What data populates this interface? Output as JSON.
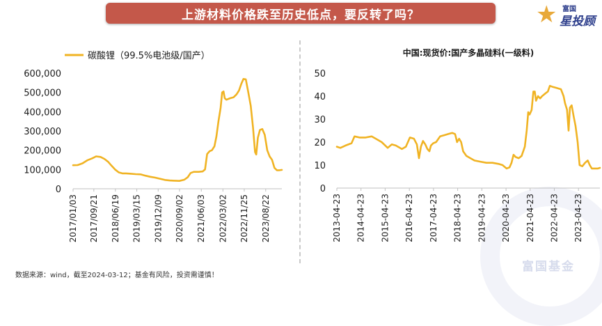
{
  "header": {
    "title": "上游材料价格跌至历史低点，要反转了吗？"
  },
  "logo": {
    "brand_small": "富国",
    "brand_big": "星投顾",
    "icon": "star-icon"
  },
  "footer": {
    "source": "数据来源：wind，截至2024-03-12；基金有风险，投资需谨慎！"
  },
  "watermark": {
    "text": "富国基金"
  },
  "colors": {
    "line": "#f0b323",
    "banner": "#c4584a",
    "axis": "#bfbfbf",
    "text": "#1a1a1a"
  },
  "chart_data": [
    {
      "type": "line",
      "title": "",
      "legend": "碳酸锂（99.5%电池级/国产）",
      "legend_position": "top-left",
      "xlabel": "",
      "ylabel": "",
      "ylim": [
        0,
        600000
      ],
      "yticks": [
        "600,000",
        "500,000",
        "400,000",
        "300,000",
        "200,000",
        "100,000",
        "0"
      ],
      "xticks": [
        "2017/01/03",
        "2017/09/21",
        "2018/06/19",
        "2019/03/15",
        "2019/12/09",
        "2020/09/02",
        "2021/06/03",
        "2022/03/02",
        "2022/11/25",
        "2023/08/22"
      ],
      "x_range": [
        "2017-01-03",
        "2024-03-12"
      ],
      "grid": false,
      "series": [
        {
          "name": "碳酸锂（99.5%电池级/国产）",
          "points": [
            [
              "2017-01-03",
              122000
            ],
            [
              "2017-03-01",
              123000
            ],
            [
              "2017-05-01",
              132000
            ],
            [
              "2017-07-01",
              148000
            ],
            [
              "2017-09-01",
              158000
            ],
            [
              "2017-10-20",
              168000
            ],
            [
              "2017-12-15",
              165000
            ],
            [
              "2018-02-01",
              155000
            ],
            [
              "2018-03-20",
              140000
            ],
            [
              "2018-05-01",
              120000
            ],
            [
              "2018-06-15",
              100000
            ],
            [
              "2018-08-01",
              85000
            ],
            [
              "2018-09-15",
              80000
            ],
            [
              "2018-11-01",
              80000
            ],
            [
              "2019-01-01",
              78000
            ],
            [
              "2019-03-01",
              76000
            ],
            [
              "2019-05-01",
              75000
            ],
            [
              "2019-07-01",
              68000
            ],
            [
              "2019-09-01",
              62000
            ],
            [
              "2019-11-01",
              58000
            ],
            [
              "2020-01-01",
              52000
            ],
            [
              "2020-03-01",
              46000
            ],
            [
              "2020-05-01",
              43000
            ],
            [
              "2020-07-01",
              42000
            ],
            [
              "2020-09-01",
              41000
            ],
            [
              "2020-11-01",
              47000
            ],
            [
              "2020-12-15",
              60000
            ],
            [
              "2021-01-20",
              82000
            ],
            [
              "2021-03-01",
              88000
            ],
            [
              "2021-05-01",
              88000
            ],
            [
              "2021-06-20",
              90000
            ],
            [
              "2021-07-20",
              100000
            ],
            [
              "2021-08-15",
              180000
            ],
            [
              "2021-09-15",
              195000
            ],
            [
              "2021-10-15",
              200000
            ],
            [
              "2021-11-15",
              220000
            ],
            [
              "2021-12-10",
              270000
            ],
            [
              "2022-01-05",
              350000
            ],
            [
              "2022-02-01",
              420000
            ],
            [
              "2022-02-20",
              500000
            ],
            [
              "2022-03-10",
              505000
            ],
            [
              "2022-03-25",
              470000
            ],
            [
              "2022-04-15",
              462000
            ],
            [
              "2022-06-01",
              470000
            ],
            [
              "2022-07-15",
              475000
            ],
            [
              "2022-08-20",
              490000
            ],
            [
              "2022-09-20",
              510000
            ],
            [
              "2022-10-20",
              545000
            ],
            [
              "2022-11-15",
              570000
            ],
            [
              "2022-12-15",
              568000
            ],
            [
              "2023-01-15",
              500000
            ],
            [
              "2023-02-15",
              430000
            ],
            [
              "2023-03-15",
              320000
            ],
            [
              "2023-04-10",
              190000
            ],
            [
              "2023-04-25",
              178000
            ],
            [
              "2023-05-15",
              265000
            ],
            [
              "2023-06-10",
              305000
            ],
            [
              "2023-07-10",
              310000
            ],
            [
              "2023-08-10",
              280000
            ],
            [
              "2023-09-10",
              200000
            ],
            [
              "2023-10-10",
              168000
            ],
            [
              "2023-11-10",
              150000
            ],
            [
              "2023-12-10",
              108000
            ],
            [
              "2024-01-10",
              96000
            ],
            [
              "2024-02-10",
              96000
            ],
            [
              "2024-03-12",
              98000
            ]
          ]
        }
      ]
    },
    {
      "type": "line",
      "title": "中国:现货价:国产多晶硅料(一级料)",
      "legend": "",
      "xlabel": "",
      "ylabel": "",
      "ylim": [
        0,
        50
      ],
      "yticks": [
        "50",
        "40",
        "30",
        "20",
        "10",
        "0"
      ],
      "xticks": [
        "2013-04-23",
        "2014-04-23",
        "2015-04-23",
        "2016-04-23",
        "2017-04-23",
        "2018-04-23",
        "2019-04-23",
        "2020-04-23",
        "2021-04-23",
        "2022-04-23",
        "2023-04-23"
      ],
      "x_range": [
        "2013-04-23",
        "2024-03-12"
      ],
      "grid": false,
      "series": [
        {
          "name": "",
          "points": [
            [
              "2013-04-23",
              18
            ],
            [
              "2013-06-15",
              17.5
            ],
            [
              "2013-09-01",
              18.5
            ],
            [
              "2013-12-01",
              19.5
            ],
            [
              "2014-01-15",
              22.5
            ],
            [
              "2014-04-01",
              22
            ],
            [
              "2014-07-01",
              22
            ],
            [
              "2014-10-01",
              22.5
            ],
            [
              "2015-01-01",
              21
            ],
            [
              "2015-03-01",
              20
            ],
            [
              "2015-06-01",
              17.5
            ],
            [
              "2015-08-01",
              19
            ],
            [
              "2015-10-01",
              18.5
            ],
            [
              "2016-01-01",
              17
            ],
            [
              "2016-03-01",
              18
            ],
            [
              "2016-05-01",
              22
            ],
            [
              "2016-07-01",
              21.5
            ],
            [
              "2016-08-15",
              19
            ],
            [
              "2016-09-15",
              13
            ],
            [
              "2016-10-15",
              18
            ],
            [
              "2016-11-15",
              20.5
            ],
            [
              "2016-12-20",
              19
            ],
            [
              "2017-01-20",
              17
            ],
            [
              "2017-02-20",
              16
            ],
            [
              "2017-03-15",
              18.5
            ],
            [
              "2017-04-20",
              19.5
            ],
            [
              "2017-06-01",
              20
            ],
            [
              "2017-08-01",
              22.5
            ],
            [
              "2017-10-01",
              23
            ],
            [
              "2017-12-01",
              23.5
            ],
            [
              "2018-02-01",
              24
            ],
            [
              "2018-03-15",
              23.5
            ],
            [
              "2018-04-15",
              20
            ],
            [
              "2018-05-15",
              21.5
            ],
            [
              "2018-06-15",
              20
            ],
            [
              "2018-07-15",
              16
            ],
            [
              "2018-09-01",
              14
            ],
            [
              "2018-11-01",
              13
            ],
            [
              "2019-01-01",
              12
            ],
            [
              "2019-04-01",
              11.5
            ],
            [
              "2019-07-01",
              11
            ],
            [
              "2019-10-01",
              11
            ],
            [
              "2020-01-01",
              10.5
            ],
            [
              "2020-03-01",
              10
            ],
            [
              "2020-05-01",
              8.5
            ],
            [
              "2020-06-15",
              9
            ],
            [
              "2020-07-15",
              11
            ],
            [
              "2020-08-15",
              14.5
            ],
            [
              "2020-09-15",
              13.5
            ],
            [
              "2020-11-01",
              13
            ],
            [
              "2020-12-15",
              14
            ],
            [
              "2021-02-01",
              18
            ],
            [
              "2021-03-01",
              25
            ],
            [
              "2021-03-25",
              33
            ],
            [
              "2021-04-15",
              32
            ],
            [
              "2021-05-15",
              34
            ],
            [
              "2021-06-10",
              42
            ],
            [
              "2021-07-01",
              42
            ],
            [
              "2021-07-20",
              38
            ],
            [
              "2021-08-20",
              40
            ],
            [
              "2021-09-20",
              39
            ],
            [
              "2021-10-20",
              40
            ],
            [
              "2021-12-01",
              41
            ],
            [
              "2022-01-15",
              42
            ],
            [
              "2022-02-15",
              44.5
            ],
            [
              "2022-04-01",
              44
            ],
            [
              "2022-06-01",
              43.5
            ],
            [
              "2022-08-01",
              43
            ],
            [
              "2022-09-10",
              40
            ],
            [
              "2022-10-01",
              37
            ],
            [
              "2022-11-01",
              34
            ],
            [
              "2022-11-25",
              25
            ],
            [
              "2022-12-15",
              35
            ],
            [
              "2023-01-10",
              36
            ],
            [
              "2023-02-10",
              31
            ],
            [
              "2023-03-10",
              27
            ],
            [
              "2023-04-10",
              20
            ],
            [
              "2023-05-10",
              10
            ],
            [
              "2023-06-20",
              9.5
            ],
            [
              "2023-08-01",
              11
            ],
            [
              "2023-09-10",
              12
            ],
            [
              "2023-10-10",
              10
            ],
            [
              "2023-11-10",
              8.5
            ],
            [
              "2024-01-10",
              8.5
            ],
            [
              "2024-02-10",
              8.5
            ],
            [
              "2024-03-12",
              8.8
            ]
          ]
        }
      ]
    }
  ]
}
